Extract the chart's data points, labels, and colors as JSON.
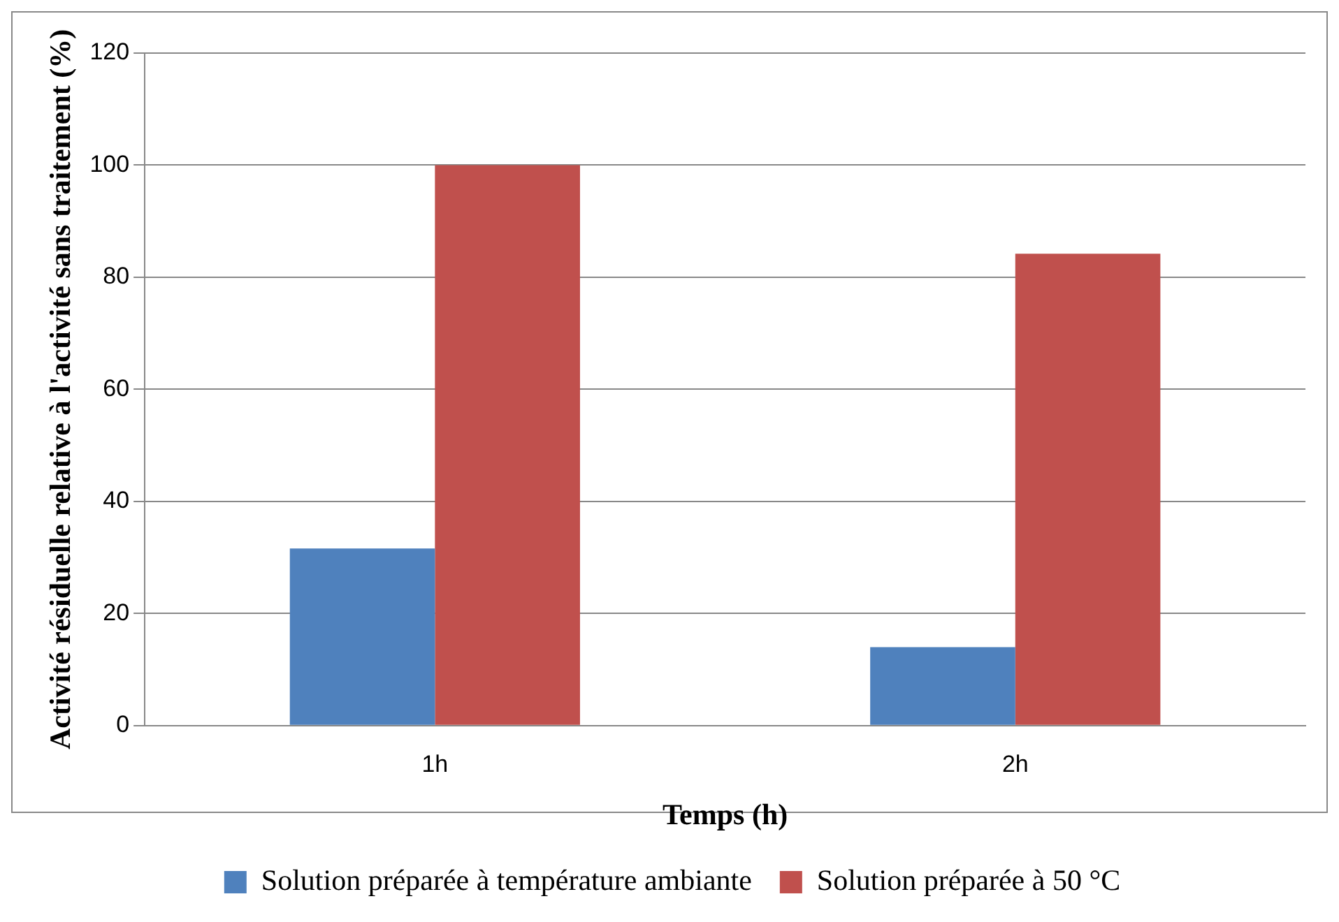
{
  "chart_data": {
    "type": "bar",
    "xlabel": "Temps (h)",
    "ylabel": "Activité résiduelle relative à l'activité sans traitement (%)",
    "categories": [
      "1h",
      "2h"
    ],
    "series": [
      {
        "name": "Solution préparée à température ambiante",
        "color": "#4f81bd",
        "values": [
          31.6,
          14
        ]
      },
      {
        "name": "Solution préparée à 50 °C",
        "color": "#c0504d",
        "values": [
          100,
          84.2
        ]
      }
    ],
    "ylim": [
      0,
      120
    ],
    "yticks": [
      0,
      20,
      40,
      60,
      80,
      100,
      120
    ],
    "grid": "y",
    "legend": "bottom"
  }
}
